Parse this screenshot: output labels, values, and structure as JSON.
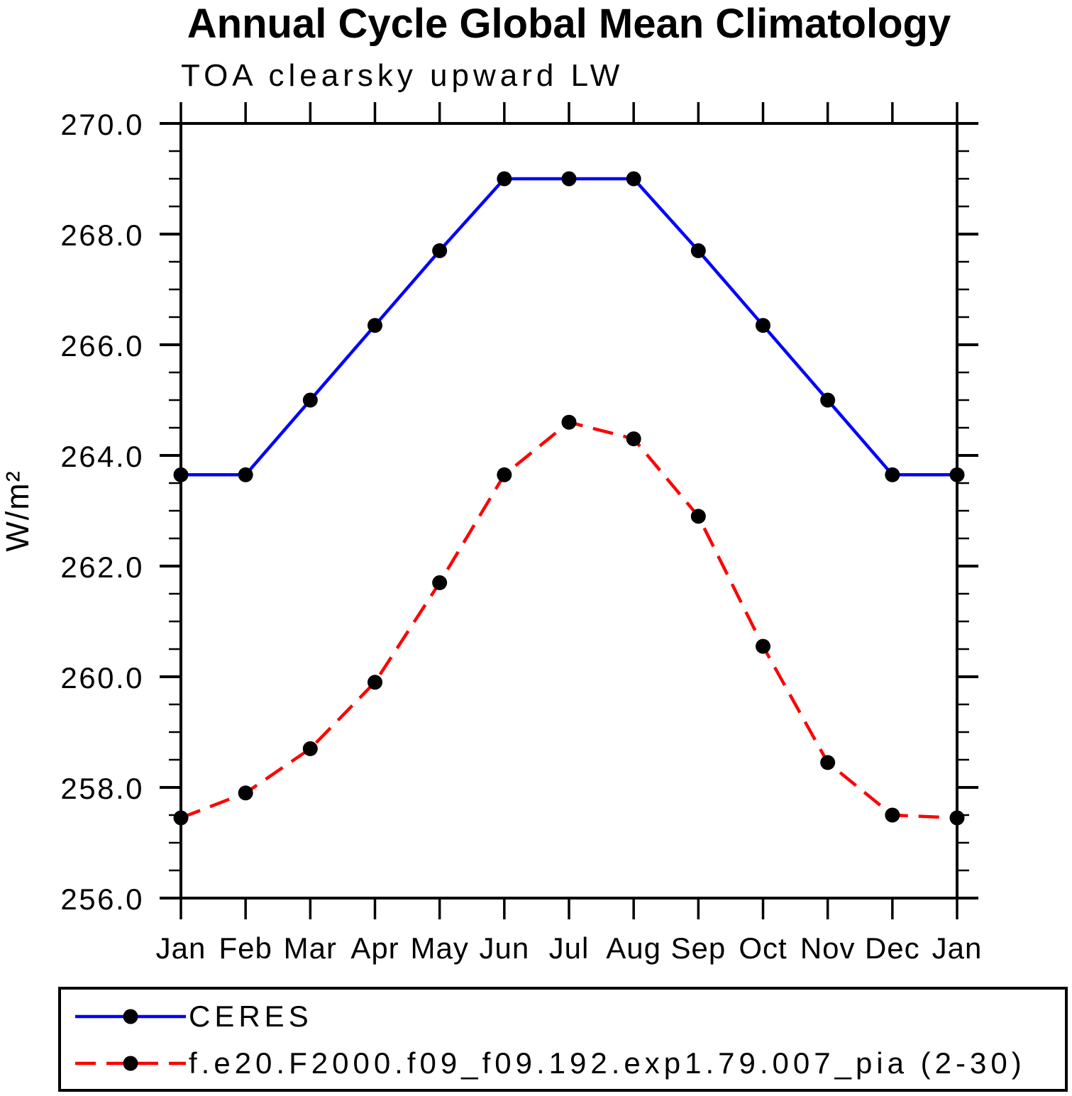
{
  "chart_data": {
    "type": "line",
    "title": "Annual Cycle Global Mean Climatology",
    "subtitle": "TOA clearsky upward LW",
    "ylabel": "W/m²",
    "xlabel": "",
    "x_categories": [
      "Jan",
      "Feb",
      "Mar",
      "Apr",
      "May",
      "Jun",
      "Jul",
      "Aug",
      "Sep",
      "Oct",
      "Nov",
      "Dec",
      "Jan"
    ],
    "ylim": [
      256.0,
      270.0
    ],
    "y_major_tick_step": 2.0,
    "y_minor_tick_step": 0.5,
    "y_tick_labels": [
      "256.0",
      "258.0",
      "260.0",
      "262.0",
      "264.0",
      "266.0",
      "268.0",
      "270.0"
    ],
    "grid": false,
    "legend_position": "boxed legend below plot, bottom-left",
    "axis_color": "#000000",
    "marker": "filled-circle",
    "marker_color": "#000000",
    "series": [
      {
        "name": "CERES",
        "color": "#0000ff",
        "line_style": "solid",
        "values": [
          263.65,
          263.65,
          265.0,
          266.35,
          267.7,
          269.0,
          269.0,
          269.0,
          267.7,
          266.35,
          265.0,
          263.65,
          263.65
        ]
      },
      {
        "name": "f.e20.F2000.f09_f09.192.exp1.79.007_pia (2-30)",
        "color": "#ff0000",
        "line_style": "dashed",
        "values": [
          257.45,
          257.9,
          258.7,
          259.9,
          261.7,
          263.65,
          264.6,
          264.3,
          262.9,
          260.55,
          258.45,
          257.5,
          257.45
        ]
      }
    ]
  }
}
